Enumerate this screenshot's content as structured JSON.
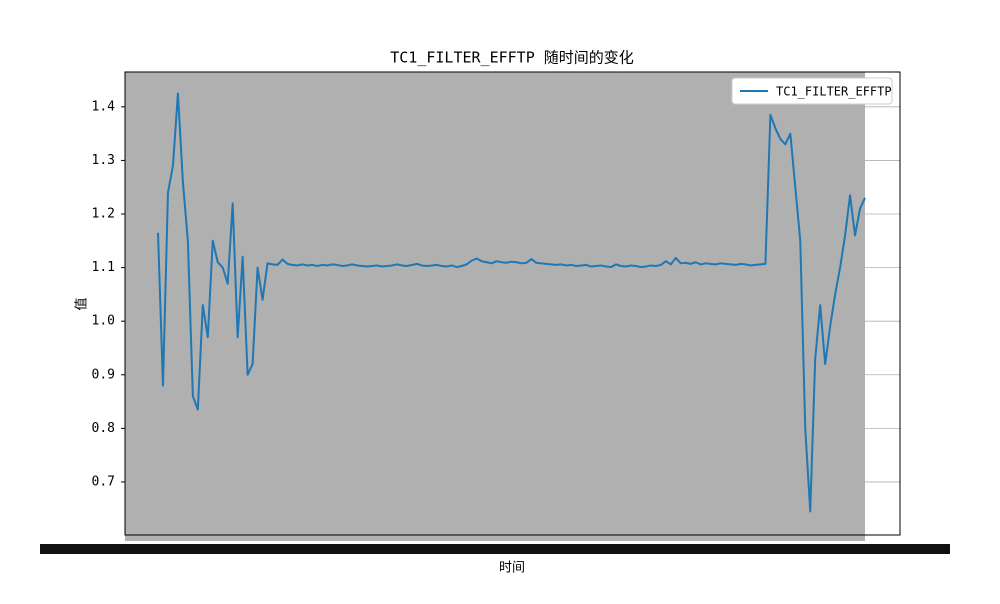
{
  "chart_data": {
    "type": "line",
    "title": "TC1_FILTER_EFFTP 随时间的变化",
    "x_label": "时间",
    "y_label": "值",
    "categories": [
      null,
      null,
      null,
      null,
      null,
      null,
      null,
      null,
      null,
      null,
      null,
      null,
      null,
      null,
      null,
      null,
      null,
      null,
      null,
      null,
      null,
      null,
      null,
      null,
      null,
      null,
      null,
      null,
      null,
      null,
      null,
      null,
      null,
      null,
      null,
      null,
      null,
      null,
      null,
      null,
      null,
      null,
      null,
      null,
      null,
      null,
      null,
      null,
      null,
      null,
      null,
      null,
      null,
      null,
      null,
      null,
      null,
      null,
      null,
      null,
      null,
      null,
      null,
      null,
      null,
      null,
      null,
      null,
      null,
      null,
      null,
      null,
      null,
      null,
      null,
      null,
      null,
      null,
      null,
      null,
      null,
      null,
      null,
      null,
      null,
      null,
      null,
      null,
      null,
      null,
      null,
      null,
      null,
      null,
      null,
      null,
      null,
      null,
      null,
      null,
      null,
      null,
      null,
      null,
      null,
      null,
      null,
      null,
      null,
      null,
      null,
      null,
      null,
      null,
      null,
      null,
      null,
      null,
      null,
      null,
      null,
      null,
      null,
      null,
      null,
      null,
      null,
      null,
      null,
      null,
      null,
      null,
      null,
      null,
      null,
      null,
      null,
      null,
      null,
      null,
      null,
      null,
      null
    ],
    "series": [
      {
        "name": "TC1_FILTER_EFFTP",
        "color": "#1f77b4",
        "values": [
          1.165,
          0.88,
          1.24,
          1.29,
          1.425,
          1.26,
          1.15,
          0.86,
          0.835,
          1.03,
          0.97,
          1.15,
          1.11,
          1.1,
          1.07,
          1.22,
          0.97,
          1.12,
          0.9,
          0.92,
          1.1,
          1.04,
          1.108,
          1.106,
          1.105,
          1.115,
          1.107,
          1.105,
          1.104,
          1.106,
          1.104,
          1.105,
          1.103,
          1.105,
          1.104,
          1.106,
          1.105,
          1.103,
          1.104,
          1.106,
          1.104,
          1.103,
          1.102,
          1.103,
          1.104,
          1.102,
          1.103,
          1.104,
          1.106,
          1.104,
          1.103,
          1.105,
          1.107,
          1.104,
          1.103,
          1.104,
          1.105,
          1.103,
          1.102,
          1.104,
          1.101,
          1.103,
          1.106,
          1.113,
          1.117,
          1.112,
          1.11,
          1.108,
          1.112,
          1.11,
          1.109,
          1.111,
          1.11,
          1.108,
          1.109,
          1.116,
          1.109,
          1.108,
          1.107,
          1.106,
          1.105,
          1.106,
          1.104,
          1.105,
          1.103,
          1.104,
          1.105,
          1.102,
          1.103,
          1.104,
          1.102,
          1.101,
          1.106,
          1.103,
          1.102,
          1.104,
          1.103,
          1.101,
          1.102,
          1.104,
          1.103,
          1.105,
          1.112,
          1.106,
          1.118,
          1.108,
          1.109,
          1.107,
          1.11,
          1.106,
          1.108,
          1.107,
          1.106,
          1.108,
          1.107,
          1.106,
          1.105,
          1.107,
          1.106,
          1.104,
          1.105,
          1.106,
          1.107,
          1.385,
          1.36,
          1.34,
          1.33,
          1.35,
          1.25,
          1.15,
          0.8,
          0.645,
          0.93,
          1.03,
          0.92,
          0.99,
          1.05,
          1.1,
          1.16,
          1.235,
          1.16,
          1.21,
          1.23
        ]
      }
    ],
    "ylim": [
      0.601,
      1.465
    ],
    "yticks": [
      0.7,
      0.8,
      0.9,
      {
        "value": 1,
        "label": "1.0"
      },
      1.1,
      1.2,
      1.3,
      1.4
    ],
    "grid": true,
    "legend": "upper right"
  }
}
